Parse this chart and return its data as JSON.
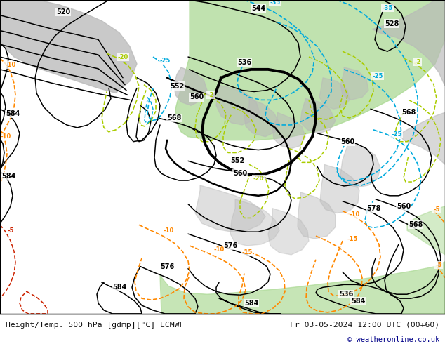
{
  "title_left": "Height/Temp. 500 hPa [gdmp][°C] ECMWF",
  "title_right": "Fr 03-05-2024 12:00 UTC (00+60)",
  "copyright": "© weatheronline.co.uk",
  "map_bg": "#d8d8d8",
  "green": "#a8d890",
  "gray_land": "#b8b8b8",
  "footer_bg": "#ffffff",
  "footer_fg": "#111111",
  "copy_color": "#000088",
  "blk": "#000000",
  "grn_iso": "#00bb44",
  "cyn_iso": "#00aadd",
  "org_iso": "#ff8800",
  "red_iso": "#cc2200",
  "ylw_iso": "#aacc00",
  "fig_w": 6.34,
  "fig_h": 4.9,
  "dpi": 100
}
